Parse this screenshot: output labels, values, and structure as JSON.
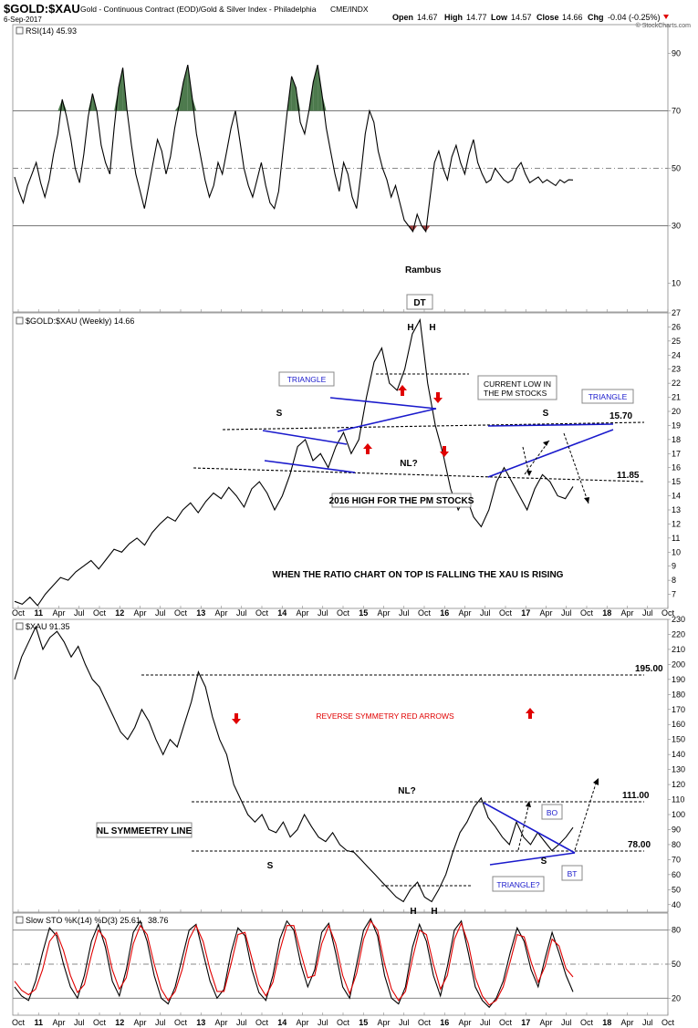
{
  "header": {
    "symbol": "$GOLD:$XAU",
    "description": "Gold - Continuous Contract (EOD)/Gold & Silver Index - Philadelphia",
    "exchange": "CME/INDX",
    "date": "6-Sep-2017",
    "open_label": "Open",
    "open": "14.67",
    "high_label": "High",
    "high": "14.77",
    "low_label": "Low",
    "low": "14.57",
    "close_label": "Close",
    "close": "14.66",
    "chg_label": "Chg",
    "chg": "-0.04 (-0.25%)",
    "watermark": "© StockCharts.com"
  },
  "x_axis": {
    "labels": [
      "Oct",
      "11",
      "Apr",
      "Jul",
      "Oct",
      "12",
      "Apr",
      "Jul",
      "Oct",
      "13",
      "Apr",
      "Jul",
      "Oct",
      "14",
      "Apr",
      "Jul",
      "Oct",
      "15",
      "Apr",
      "Jul",
      "Oct",
      "16",
      "Apr",
      "Jul",
      "Oct",
      "17",
      "Apr",
      "Jul",
      "Oct",
      "18",
      "Apr",
      "Jul",
      "Oct"
    ],
    "bold": [
      "11",
      "12",
      "13",
      "14",
      "15",
      "16",
      "17",
      "18"
    ]
  },
  "chart_data": [
    {
      "type": "line",
      "panel": "rsi",
      "legend": "RSI(14) 45.93",
      "ylim": [
        0,
        100
      ],
      "yticks": [
        10,
        30,
        50,
        70,
        90
      ],
      "reference_lines": [
        30,
        50,
        70
      ],
      "color": "#000000",
      "overbought_fill": "#4d7a4d",
      "oversold_fill": "#a04040",
      "x": [
        0,
        2,
        4,
        6,
        8,
        10,
        12,
        14,
        16,
        18,
        20,
        22,
        24,
        26,
        28,
        30,
        32,
        34,
        36,
        38,
        40,
        42,
        44,
        46,
        48,
        50,
        52,
        54,
        56,
        58,
        60,
        62,
        64,
        66,
        68,
        70,
        72,
        74,
        76,
        78,
        80,
        82,
        84,
        86,
        88,
        90,
        92,
        94,
        96,
        98,
        100,
        102,
        104,
        106,
        108,
        110,
        112,
        114,
        116,
        118,
        120,
        122,
        124,
        126,
        128,
        130,
        132,
        134,
        136,
        138,
        140,
        142,
        144,
        146,
        148,
        150,
        152,
        154,
        156,
        158,
        160,
        162,
        164,
        166,
        168,
        170,
        172,
        174,
        176,
        178,
        180,
        182,
        184,
        186,
        188,
        190,
        192,
        194,
        196,
        198,
        200,
        202,
        204,
        206,
        208,
        210,
        212,
        214,
        216,
        218,
        220,
        222,
        224,
        226,
        228,
        230,
        232,
        234,
        236,
        238,
        240,
        242,
        244,
        246,
        248,
        250,
        252,
        254,
        256,
        258
      ],
      "values": [
        47,
        42,
        38,
        44,
        48,
        52,
        45,
        40,
        46,
        55,
        62,
        74,
        68,
        60,
        50,
        45,
        55,
        68,
        76,
        70,
        58,
        52,
        48,
        64,
        78,
        85,
        70,
        58,
        48,
        42,
        36,
        44,
        52,
        60,
        56,
        48,
        54,
        64,
        72,
        80,
        86,
        75,
        62,
        54,
        46,
        40,
        44,
        52,
        48,
        56,
        64,
        70,
        60,
        50,
        44,
        40,
        46,
        52,
        44,
        38,
        36,
        42,
        56,
        70,
        82,
        78,
        66,
        62,
        70,
        80,
        86,
        76,
        64,
        56,
        48,
        42,
        52,
        48,
        40,
        36,
        48,
        62,
        70,
        66,
        56,
        50,
        46,
        40,
        44,
        38,
        32,
        30,
        28,
        34,
        30,
        28,
        40,
        52,
        56,
        50,
        46,
        54,
        58,
        52,
        48,
        55,
        60,
        52,
        48,
        45,
        46,
        50,
        48,
        46,
        45,
        46,
        50,
        52,
        48,
        45,
        46,
        47,
        45,
        46,
        45,
        44,
        46,
        45,
        46,
        45.93
      ]
    },
    {
      "type": "line",
      "panel": "ratio",
      "legend": "$GOLD:$XAU (Weekly) 14.66",
      "ylim": [
        6,
        27
      ],
      "yticks": [
        7,
        8,
        9,
        10,
        11,
        12,
        13,
        14,
        15,
        16,
        17,
        18,
        19,
        20,
        21,
        22,
        23,
        24,
        25,
        26,
        27
      ],
      "color": "#000000",
      "annotations": [
        "DT",
        "H",
        "H",
        "S",
        "S",
        "NL?",
        "TRIANGLE",
        "TRIANGLE",
        "CURRENT LOW IN THE PM STOCKS",
        "2016 HIGH FOR THE PM STOCKS",
        "15.70",
        "11.85",
        "WHEN THE RATIO CHART ON TOP IS FALLING THE XAU IS RISING",
        "Rambus"
      ],
      "levels": [
        15.7,
        11.85
      ],
      "values": [
        6.5,
        6.3,
        6.8,
        6.2,
        7.0,
        7.6,
        8.2,
        8.0,
        8.6,
        9.0,
        9.4,
        8.8,
        9.5,
        10.2,
        10.0,
        10.6,
        11.0,
        10.5,
        11.4,
        12.0,
        12.5,
        12.2,
        13.0,
        13.5,
        12.8,
        13.6,
        14.2,
        13.8,
        14.6,
        14.0,
        13.2,
        14.5,
        15.0,
        14.2,
        13.0,
        14.0,
        15.5,
        17.5,
        18.0,
        16.5,
        17.0,
        16.0,
        17.5,
        18.5,
        17.0,
        18.0,
        21.0,
        23.5,
        24.5,
        22.0,
        21.5,
        23.0,
        25.5,
        26.5,
        22.0,
        19.0,
        17.0,
        14.5,
        13.0,
        14.0,
        12.5,
        11.8,
        13.0,
        15.0,
        16.0,
        15.0,
        14.0,
        13.0,
        14.5,
        15.5,
        15.0,
        14.0,
        13.8,
        14.66
      ]
    },
    {
      "type": "line",
      "panel": "xau",
      "legend": "$XAU 91.35",
      "ylim": [
        35,
        230
      ],
      "yticks": [
        40,
        50,
        60,
        70,
        80,
        90,
        100,
        110,
        120,
        130,
        140,
        150,
        160,
        170,
        180,
        190,
        200,
        210,
        220,
        230
      ],
      "color": "#000000",
      "annotations": [
        "195.00",
        "111.00",
        "78.00",
        "NL?",
        "NL SYMMEETRY LINE",
        "REVERSE SYMMETRY RED ARROWS",
        "S",
        "S",
        "H",
        "H",
        "BO",
        "BT",
        "TRIANGLE?"
      ],
      "levels": [
        195.0,
        111.0,
        78.0
      ],
      "values": [
        190,
        205,
        215,
        225,
        210,
        218,
        222,
        215,
        205,
        212,
        200,
        190,
        185,
        175,
        165,
        155,
        150,
        158,
        170,
        162,
        150,
        140,
        150,
        145,
        160,
        175,
        195,
        185,
        165,
        150,
        140,
        120,
        110,
        100,
        95,
        100,
        90,
        88,
        95,
        85,
        90,
        100,
        92,
        85,
        82,
        88,
        80,
        76,
        75,
        70,
        65,
        60,
        55,
        50,
        45,
        42,
        50,
        55,
        45,
        42,
        50,
        60,
        75,
        88,
        95,
        105,
        111,
        98,
        92,
        85,
        80,
        95,
        85,
        80,
        88,
        82,
        76,
        80,
        85,
        91.35
      ]
    },
    {
      "type": "line",
      "panel": "stochastic",
      "legend_parts": [
        "Slow STO %K(14) %D(3) 25.61,",
        "38.76"
      ],
      "ylim": [
        5,
        95
      ],
      "yticks": [
        20,
        50,
        80
      ],
      "reference_lines": [
        20,
        50,
        80
      ],
      "series": [
        {
          "name": "%K(14)",
          "color": "#000000",
          "values": [
            30,
            22,
            18,
            35,
            60,
            82,
            75,
            50,
            30,
            20,
            40,
            70,
            85,
            65,
            35,
            22,
            45,
            78,
            88,
            70,
            40,
            20,
            15,
            30,
            55,
            80,
            85,
            60,
            35,
            20,
            28,
            60,
            82,
            75,
            45,
            25,
            18,
            40,
            72,
            88,
            80,
            50,
            30,
            45,
            78,
            86,
            60,
            30,
            20,
            50,
            80,
            90,
            75,
            40,
            20,
            15,
            30,
            65,
            85,
            70,
            40,
            22,
            48,
            80,
            88,
            60,
            30,
            18,
            12,
            20,
            35,
            60,
            82,
            70,
            45,
            30,
            55,
            78,
            60,
            40,
            25.61
          ]
        },
        {
          "name": "%D(3)",
          "color": "#e00000",
          "values": [
            35,
            27,
            23,
            28,
            45,
            70,
            78,
            62,
            40,
            25,
            32,
            58,
            80,
            72,
            45,
            28,
            38,
            68,
            84,
            76,
            50,
            28,
            18,
            26,
            45,
            72,
            84,
            70,
            45,
            26,
            26,
            50,
            76,
            78,
            55,
            32,
            22,
            34,
            62,
            84,
            84,
            60,
            38,
            40,
            68,
            84,
            68,
            40,
            24,
            42,
            72,
            88,
            80,
            50,
            28,
            18,
            26,
            55,
            80,
            76,
            50,
            28,
            40,
            72,
            86,
            68,
            38,
            22,
            14,
            18,
            30,
            52,
            76,
            74,
            52,
            34,
            48,
            72,
            66,
            46,
            38.76
          ]
        }
      ]
    }
  ]
}
